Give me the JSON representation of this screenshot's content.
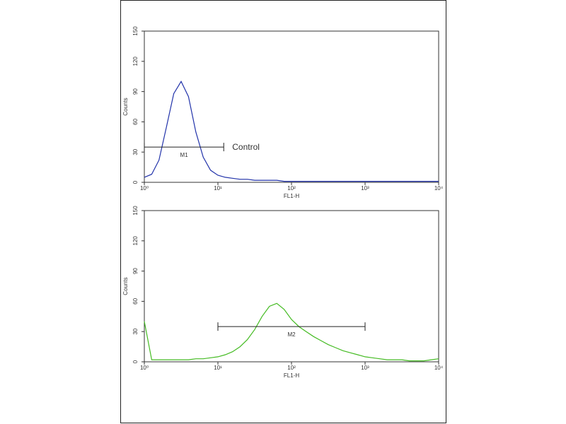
{
  "chart_data": [
    {
      "type": "line",
      "xscale": "log",
      "xlabel": "FL1-H",
      "ylabel": "Counts",
      "x": [
        1,
        1.26,
        1.58,
        2,
        2.51,
        3.16,
        3.98,
        5.01,
        6.31,
        7.94,
        10,
        12.6,
        15.8,
        20,
        25.1,
        31.6,
        39.8,
        50.1,
        63.1,
        79.4,
        100,
        126,
        158,
        200,
        251,
        316,
        398,
        501,
        631,
        794,
        1000,
        1259,
        1585,
        1995,
        2512,
        3162,
        3981,
        5012,
        6310,
        7943,
        10000
      ],
      "series": [
        {
          "color": "#2233aa",
          "values": [
            5,
            8,
            22,
            55,
            88,
            100,
            85,
            50,
            25,
            12,
            7,
            5,
            4,
            3,
            3,
            2,
            2,
            2,
            2,
            1,
            1,
            1,
            1,
            1,
            1,
            1,
            1,
            1,
            1,
            1,
            1,
            1,
            1,
            1,
            1,
            1,
            1,
            1,
            1,
            1,
            1
          ]
        }
      ],
      "xlim": [
        1,
        10000
      ],
      "xticks": [
        {
          "value": 1,
          "label": "10⁰"
        },
        {
          "value": 10,
          "label": "10¹"
        },
        {
          "value": 100,
          "label": "10²"
        },
        {
          "value": 1000,
          "label": "10³"
        },
        {
          "value": 10000,
          "label": "10⁴"
        }
      ],
      "ylim": [
        0,
        150
      ],
      "yticks": [
        0,
        30,
        60,
        90,
        120,
        150
      ],
      "gate": {
        "label": "M1",
        "start": 1,
        "end": 12,
        "level": 35
      },
      "annotation": "Control"
    },
    {
      "type": "line",
      "xscale": "log",
      "xlabel": "FL1-H",
      "ylabel": "Counts",
      "x": [
        1,
        1.26,
        1.58,
        2,
        2.51,
        3.16,
        3.98,
        5.01,
        6.31,
        7.94,
        10,
        12.6,
        15.8,
        20,
        25.1,
        31.6,
        39.8,
        50.1,
        63.1,
        79.4,
        100,
        126,
        158,
        200,
        251,
        316,
        398,
        501,
        631,
        794,
        1000,
        1259,
        1585,
        1995,
        2512,
        3162,
        3981,
        5012,
        6310,
        7943,
        10000
      ],
      "series": [
        {
          "color": "#44bb22",
          "values": [
            40,
            2,
            2,
            2,
            2,
            2,
            2,
            3,
            3,
            4,
            5,
            7,
            10,
            15,
            22,
            32,
            45,
            55,
            58,
            52,
            42,
            35,
            30,
            25,
            21,
            17,
            14,
            11,
            9,
            7,
            5,
            4,
            3,
            2,
            2,
            2,
            1,
            1,
            1,
            2,
            3
          ]
        }
      ],
      "xlim": [
        1,
        10000
      ],
      "xticks": [
        {
          "value": 1,
          "label": "10⁰"
        },
        {
          "value": 10,
          "label": "10¹"
        },
        {
          "value": 100,
          "label": "10²"
        },
        {
          "value": 1000,
          "label": "10³"
        },
        {
          "value": 10000,
          "label": "10⁴"
        }
      ],
      "ylim": [
        0,
        150
      ],
      "yticks": [
        0,
        30,
        60,
        90,
        120,
        150
      ],
      "gate": {
        "label": "M2",
        "start": 10,
        "end": 1000,
        "level": 35
      }
    }
  ]
}
